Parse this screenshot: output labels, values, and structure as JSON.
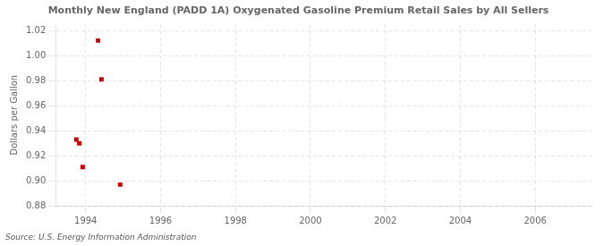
{
  "chart_data": {
    "type": "scatter",
    "title": "Monthly New England (PADD 1A) Oxygenated Gasoline Premium Retail Sales by All Sellers",
    "y_label": "Dollars per Gallon",
    "annotations": [
      "Source: U.S. Energy Information Administration"
    ],
    "x": [
      1993.75,
      1993.83,
      1993.92,
      1994.33,
      1994.42,
      1994.92
    ],
    "values": [
      0.933,
      0.93,
      0.911,
      1.012,
      0.981,
      0.897
    ],
    "color": "#cc0000",
    "marker": "square",
    "xlim": [
      1993.2,
      2007.5
    ],
    "ylim": [
      0.88,
      1.025
    ],
    "xticks": [
      1994,
      1996,
      1998,
      2000,
      2002,
      2004,
      2006
    ],
    "yticks": [
      0.88,
      {
        "value": 0.9,
        "label": "0.90"
      },
      0.92,
      0.94,
      0.96,
      0.98,
      {
        "value": 1.0,
        "label": "1.00"
      },
      1.02
    ],
    "grid": true
  }
}
